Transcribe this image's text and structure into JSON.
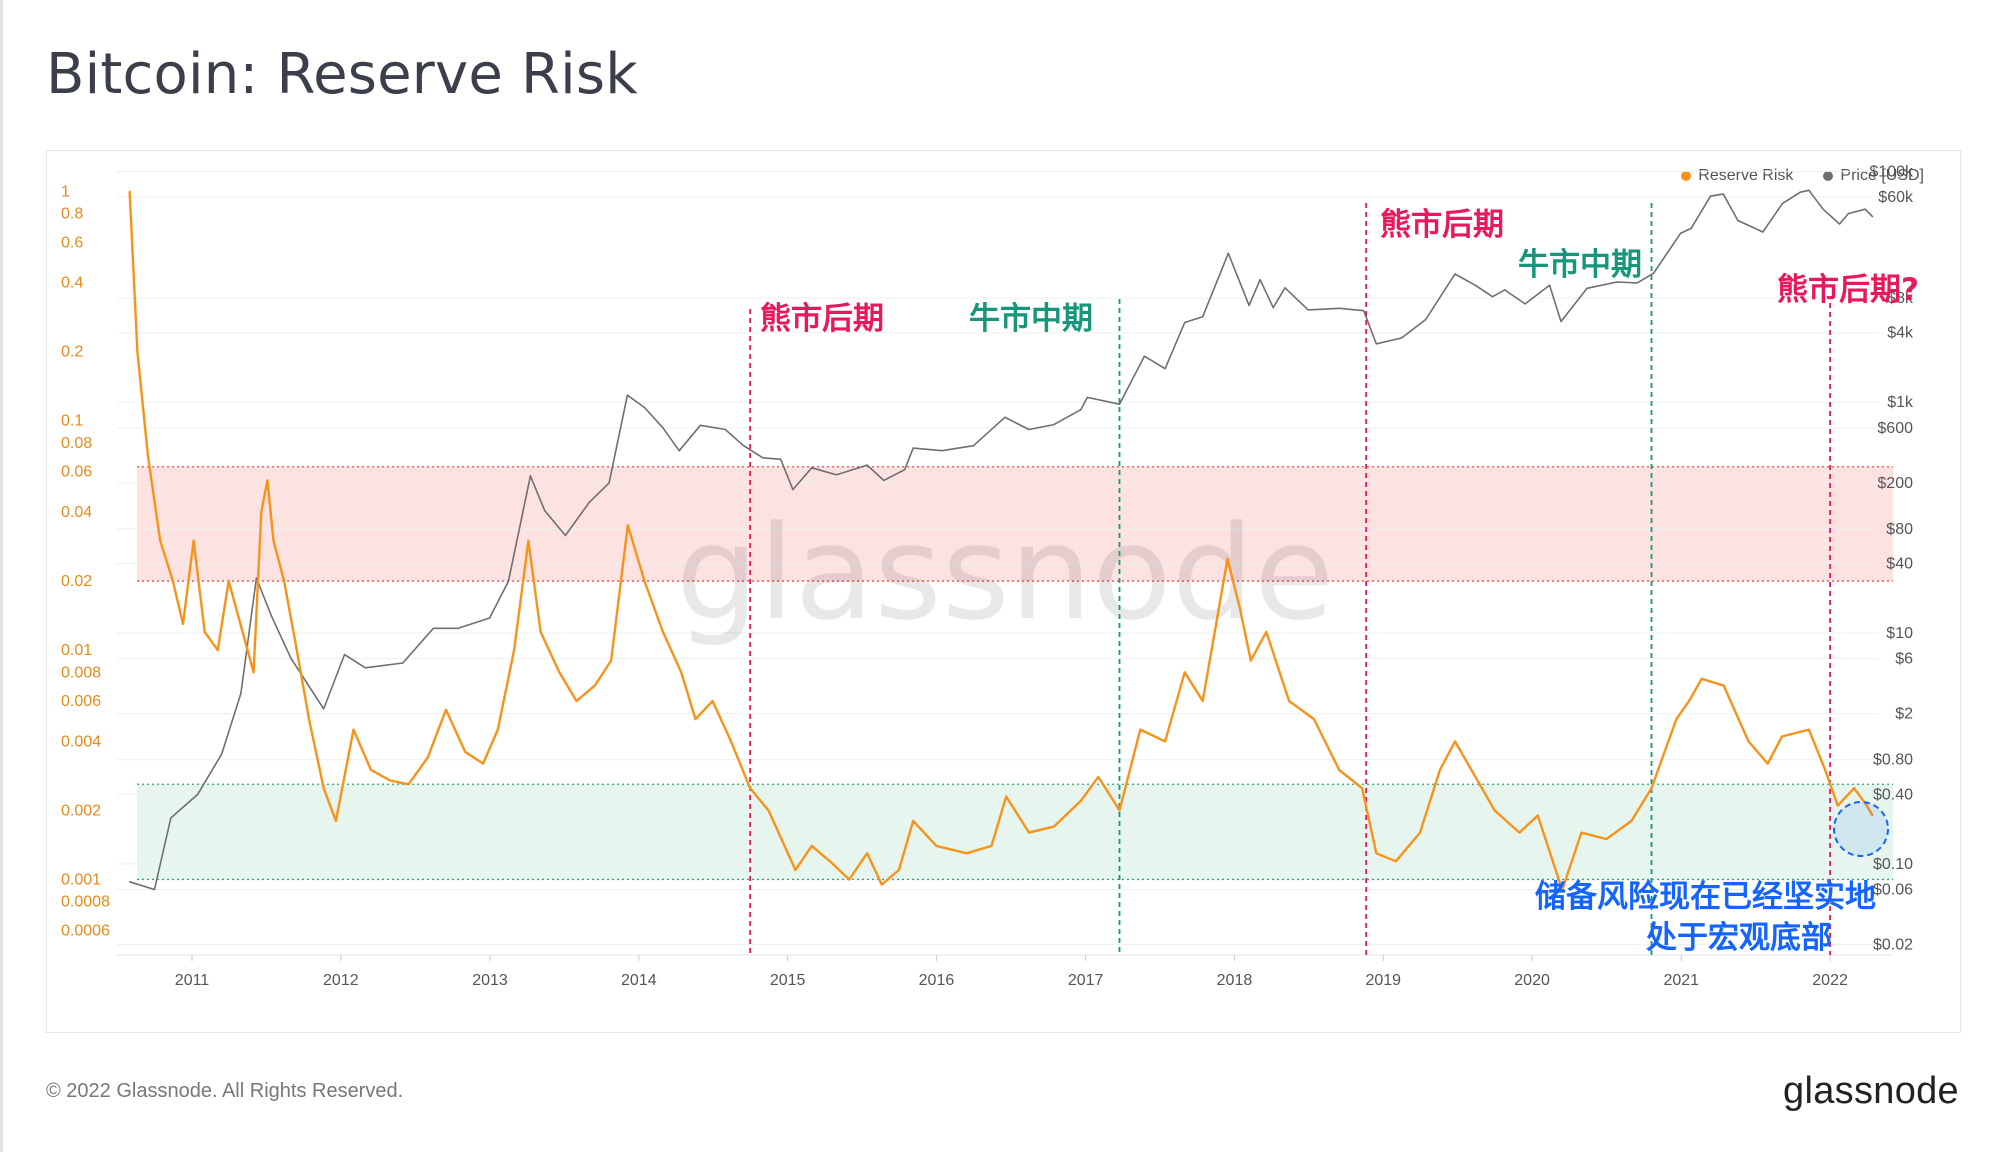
{
  "page": {
    "title": "Bitcoin: Reserve Risk",
    "copyright": "© 2022 Glassnode. All Rights Reserved.",
    "logo_text": "glassnode",
    "watermark": "glassnode"
  },
  "colors": {
    "reserve_risk": "#f7931a",
    "price": "#6f6f6f",
    "red_zone": "#fde2e2",
    "green_zone": "#e6f6ee",
    "bear_annotation": "#e8185f",
    "bull_annotation": "#16967a",
    "blue_annotation": "#1464ff"
  },
  "chart_data": {
    "type": "line",
    "title": "Bitcoin: Reserve Risk",
    "legend_position": "top-right",
    "grid": true,
    "series": [
      {
        "name": "Reserve Risk",
        "axis": "left",
        "scale": "log",
        "points": [
          [
            "2010-08-01",
            1.0
          ],
          [
            "2010-08-20",
            0.2
          ],
          [
            "2010-09-15",
            0.07
          ],
          [
            "2010-10-15",
            0.03
          ],
          [
            "2010-11-15",
            0.02
          ],
          [
            "2010-12-10",
            0.013
          ],
          [
            "2011-01-05",
            0.03
          ],
          [
            "2011-02-01",
            0.012
          ],
          [
            "2011-03-05",
            0.01
          ],
          [
            "2011-04-01",
            0.02
          ],
          [
            "2011-05-05",
            0.012
          ],
          [
            "2011-06-01",
            0.008
          ],
          [
            "2011-06-20",
            0.04
          ],
          [
            "2011-07-05",
            0.055
          ],
          [
            "2011-07-20",
            0.03
          ],
          [
            "2011-08-15",
            0.02
          ],
          [
            "2011-09-15",
            0.01
          ],
          [
            "2011-10-15",
            0.005
          ],
          [
            "2011-11-20",
            0.0025
          ],
          [
            "2011-12-20",
            0.0018
          ],
          [
            "2012-02-01",
            0.0045
          ],
          [
            "2012-03-15",
            0.003
          ],
          [
            "2012-05-01",
            0.0027
          ],
          [
            "2012-06-15",
            0.0026
          ],
          [
            "2012-08-01",
            0.0034
          ],
          [
            "2012-09-15",
            0.0055
          ],
          [
            "2012-11-01",
            0.0036
          ],
          [
            "2012-12-15",
            0.0032
          ],
          [
            "2013-01-20",
            0.0045
          ],
          [
            "2013-03-01",
            0.01
          ],
          [
            "2013-04-05",
            0.03
          ],
          [
            "2013-05-05",
            0.012
          ],
          [
            "2013-06-20",
            0.008
          ],
          [
            "2013-08-01",
            0.006
          ],
          [
            "2013-09-15",
            0.007
          ],
          [
            "2013-10-25",
            0.009
          ],
          [
            "2013-12-05",
            0.035
          ],
          [
            "2014-01-15",
            0.02
          ],
          [
            "2014-03-01",
            0.012
          ],
          [
            "2014-04-15",
            0.008
          ],
          [
            "2014-05-20",
            0.005
          ],
          [
            "2014-07-01",
            0.006
          ],
          [
            "2014-08-15",
            0.004
          ],
          [
            "2014-10-01",
            0.0025
          ],
          [
            "2014-11-15",
            0.002
          ],
          [
            "2015-01-20",
            0.0011
          ],
          [
            "2015-03-01",
            0.0014
          ],
          [
            "2015-04-15",
            0.0012
          ],
          [
            "2015-06-01",
            0.001
          ],
          [
            "2015-07-15",
            0.0013
          ],
          [
            "2015-08-20",
            0.00095
          ],
          [
            "2015-10-01",
            0.0011
          ],
          [
            "2015-11-05",
            0.0018
          ],
          [
            "2016-01-01",
            0.0014
          ],
          [
            "2016-03-15",
            0.0013
          ],
          [
            "2016-05-15",
            0.0014
          ],
          [
            "2016-06-20",
            0.0023
          ],
          [
            "2016-08-15",
            0.0016
          ],
          [
            "2016-10-15",
            0.0017
          ],
          [
            "2016-12-20",
            0.0022
          ],
          [
            "2017-02-01",
            0.0028
          ],
          [
            "2017-03-25",
            0.002
          ],
          [
            "2017-05-15",
            0.0045
          ],
          [
            "2017-07-15",
            0.004
          ],
          [
            "2017-09-01",
            0.008
          ],
          [
            "2017-10-15",
            0.006
          ],
          [
            "2017-12-15",
            0.025
          ],
          [
            "2018-01-15",
            0.015
          ],
          [
            "2018-02-10",
            0.009
          ],
          [
            "2018-03-20",
            0.012
          ],
          [
            "2018-05-15",
            0.006
          ],
          [
            "2018-07-15",
            0.005
          ],
          [
            "2018-09-15",
            0.003
          ],
          [
            "2018-11-10",
            0.0025
          ],
          [
            "2018-12-15",
            0.0013
          ],
          [
            "2019-02-01",
            0.0012
          ],
          [
            "2019-04-01",
            0.0016
          ],
          [
            "2019-05-20",
            0.003
          ],
          [
            "2019-06-26",
            0.004
          ],
          [
            "2019-08-15",
            0.0028
          ],
          [
            "2019-10-01",
            0.002
          ],
          [
            "2019-12-01",
            0.0016
          ],
          [
            "2020-01-15",
            0.0019
          ],
          [
            "2020-03-15",
            0.0009
          ],
          [
            "2020-05-01",
            0.0016
          ],
          [
            "2020-07-01",
            0.0015
          ],
          [
            "2020-09-01",
            0.0018
          ],
          [
            "2020-10-20",
            0.0025
          ],
          [
            "2020-12-20",
            0.005
          ],
          [
            "2021-01-20",
            0.006
          ],
          [
            "2021-02-20",
            0.0075
          ],
          [
            "2021-04-15",
            0.007
          ],
          [
            "2021-06-15",
            0.004
          ],
          [
            "2021-08-01",
            0.0032
          ],
          [
            "2021-09-05",
            0.0042
          ],
          [
            "2021-11-10",
            0.0045
          ],
          [
            "2021-12-20",
            0.003
          ],
          [
            "2022-01-20",
            0.0021
          ],
          [
            "2022-03-01",
            0.0025
          ],
          [
            "2022-04-01",
            0.0021
          ],
          [
            "2022-04-15",
            0.0019
          ]
        ]
      },
      {
        "name": "Price [USD]",
        "axis": "right",
        "scale": "log",
        "points": [
          [
            "2010-08-01",
            0.07
          ],
          [
            "2010-10-01",
            0.06
          ],
          [
            "2010-11-10",
            0.25
          ],
          [
            "2011-01-15",
            0.4
          ],
          [
            "2011-03-15",
            0.9
          ],
          [
            "2011-05-01",
            3.0
          ],
          [
            "2011-06-08",
            30
          ],
          [
            "2011-07-15",
            14
          ],
          [
            "2011-09-01",
            6
          ],
          [
            "2011-11-20",
            2.2
          ],
          [
            "2012-01-10",
            6.5
          ],
          [
            "2012-03-01",
            5
          ],
          [
            "2012-06-01",
            5.5
          ],
          [
            "2012-08-15",
            11
          ],
          [
            "2012-10-15",
            11
          ],
          [
            "2012-12-31",
            13.5
          ],
          [
            "2013-02-15",
            28
          ],
          [
            "2013-04-10",
            230
          ],
          [
            "2013-05-15",
            115
          ],
          [
            "2013-07-05",
            70
          ],
          [
            "2013-09-01",
            135
          ],
          [
            "2013-10-20",
            200
          ],
          [
            "2013-12-04",
            1150
          ],
          [
            "2014-01-15",
            900
          ],
          [
            "2014-03-01",
            600
          ],
          [
            "2014-04-10",
            380
          ],
          [
            "2014-06-01",
            630
          ],
          [
            "2014-08-01",
            580
          ],
          [
            "2014-09-15",
            420
          ],
          [
            "2014-11-01",
            330
          ],
          [
            "2014-12-15",
            320
          ],
          [
            "2015-01-14",
            175
          ],
          [
            "2015-03-01",
            270
          ],
          [
            "2015-05-01",
            235
          ],
          [
            "2015-07-15",
            285
          ],
          [
            "2015-08-25",
            210
          ],
          [
            "2015-10-15",
            260
          ],
          [
            "2015-11-05",
            400
          ],
          [
            "2016-01-15",
            380
          ],
          [
            "2016-04-01",
            420
          ],
          [
            "2016-06-17",
            740
          ],
          [
            "2016-08-15",
            580
          ],
          [
            "2016-10-15",
            640
          ],
          [
            "2016-12-20",
            860
          ],
          [
            "2017-01-05",
            1100
          ],
          [
            "2017-03-25",
            960
          ],
          [
            "2017-05-25",
            2500
          ],
          [
            "2017-07-15",
            1950
          ],
          [
            "2017-09-01",
            4900
          ],
          [
            "2017-10-15",
            5500
          ],
          [
            "2017-12-17",
            19500
          ],
          [
            "2018-02-06",
            6900
          ],
          [
            "2018-03-05",
            11500
          ],
          [
            "2018-04-06",
            6600
          ],
          [
            "2018-05-05",
            9800
          ],
          [
            "2018-07-01",
            6300
          ],
          [
            "2018-09-15",
            6500
          ],
          [
            "2018-11-14",
            6200
          ],
          [
            "2018-12-15",
            3200
          ],
          [
            "2019-02-15",
            3600
          ],
          [
            "2019-04-15",
            5200
          ],
          [
            "2019-06-26",
            12900
          ],
          [
            "2019-08-15",
            10300
          ],
          [
            "2019-09-26",
            8200
          ],
          [
            "2019-10-26",
            9400
          ],
          [
            "2019-12-15",
            7100
          ],
          [
            "2020-02-13",
            10300
          ],
          [
            "2020-03-12",
            5000
          ],
          [
            "2020-05-15",
            9700
          ],
          [
            "2020-07-27",
            11000
          ],
          [
            "2020-09-15",
            10800
          ],
          [
            "2020-10-25",
            13100
          ],
          [
            "2020-12-30",
            29000
          ],
          [
            "2021-01-25",
            32000
          ],
          [
            "2021-03-14",
            61000
          ],
          [
            "2021-04-14",
            63500
          ],
          [
            "2021-05-20",
            37500
          ],
          [
            "2021-07-20",
            29800
          ],
          [
            "2021-09-06",
            52500
          ],
          [
            "2021-10-20",
            66000
          ],
          [
            "2021-11-10",
            68500
          ],
          [
            "2021-12-15",
            47000
          ],
          [
            "2022-01-24",
            35000
          ],
          [
            "2022-02-15",
            43000
          ],
          [
            "2022-03-28",
            47000
          ],
          [
            "2022-04-15",
            40500
          ]
        ]
      }
    ],
    "x_axis": {
      "tick_labels": [
        "2011",
        "2012",
        "2013",
        "2014",
        "2015",
        "2016",
        "2017",
        "2018",
        "2019",
        "2020",
        "2021",
        "2022"
      ]
    },
    "y_left": {
      "scale": "log",
      "tick_labels": [
        "1",
        "0.8",
        "0.6",
        "0.4",
        "0.2",
        "0.1",
        "0.08",
        "0.06",
        "0.04",
        "0.02",
        "0.01",
        "0.008",
        "0.006",
        "0.004",
        "0.002",
        "0.001",
        "0.0008",
        "0.0006"
      ],
      "tick_values": [
        1,
        0.8,
        0.6,
        0.4,
        0.2,
        0.1,
        0.08,
        0.06,
        0.04,
        0.02,
        0.01,
        0.008,
        0.006,
        0.004,
        0.002,
        0.001,
        0.0008,
        0.0006
      ]
    },
    "y_right": {
      "scale": "log",
      "tick_labels": [
        "$100k",
        "$60k",
        "$8k",
        "$4k",
        "$1k",
        "$600",
        "$200",
        "$80",
        "$40",
        "$10",
        "$6",
        "$2",
        "$0.80",
        "$0.40",
        "$0.10",
        "$0.06",
        "$0.02"
      ],
      "tick_values": [
        100000,
        60000,
        8000,
        4000,
        1000,
        600,
        200,
        80,
        40,
        10,
        6,
        2,
        0.8,
        0.4,
        0.1,
        0.06,
        0.02
      ]
    },
    "bands": [
      {
        "name": "red-zone",
        "from": 0.02,
        "to": 0.063,
        "color": "#fde2e2"
      },
      {
        "name": "green-zone",
        "from": 0.001,
        "to": 0.0026,
        "color": "#e6f6ee"
      }
    ],
    "vertical_markers": [
      {
        "date": "2014-10-01",
        "label": "熊市后期",
        "kind": "bear"
      },
      {
        "date": "2017-03-25",
        "label": "牛市中期",
        "kind": "bull"
      },
      {
        "date": "2018-11-20",
        "label": "熊市后期",
        "kind": "bear"
      },
      {
        "date": "2020-10-20",
        "label": "牛市中期",
        "kind": "bull"
      },
      {
        "date": "2022-01-01",
        "label": "熊市后期?",
        "kind": "bear"
      }
    ],
    "annotation": {
      "line1": "储备风险现在已经坚实地",
      "line2": "处于宏观底部"
    }
  }
}
